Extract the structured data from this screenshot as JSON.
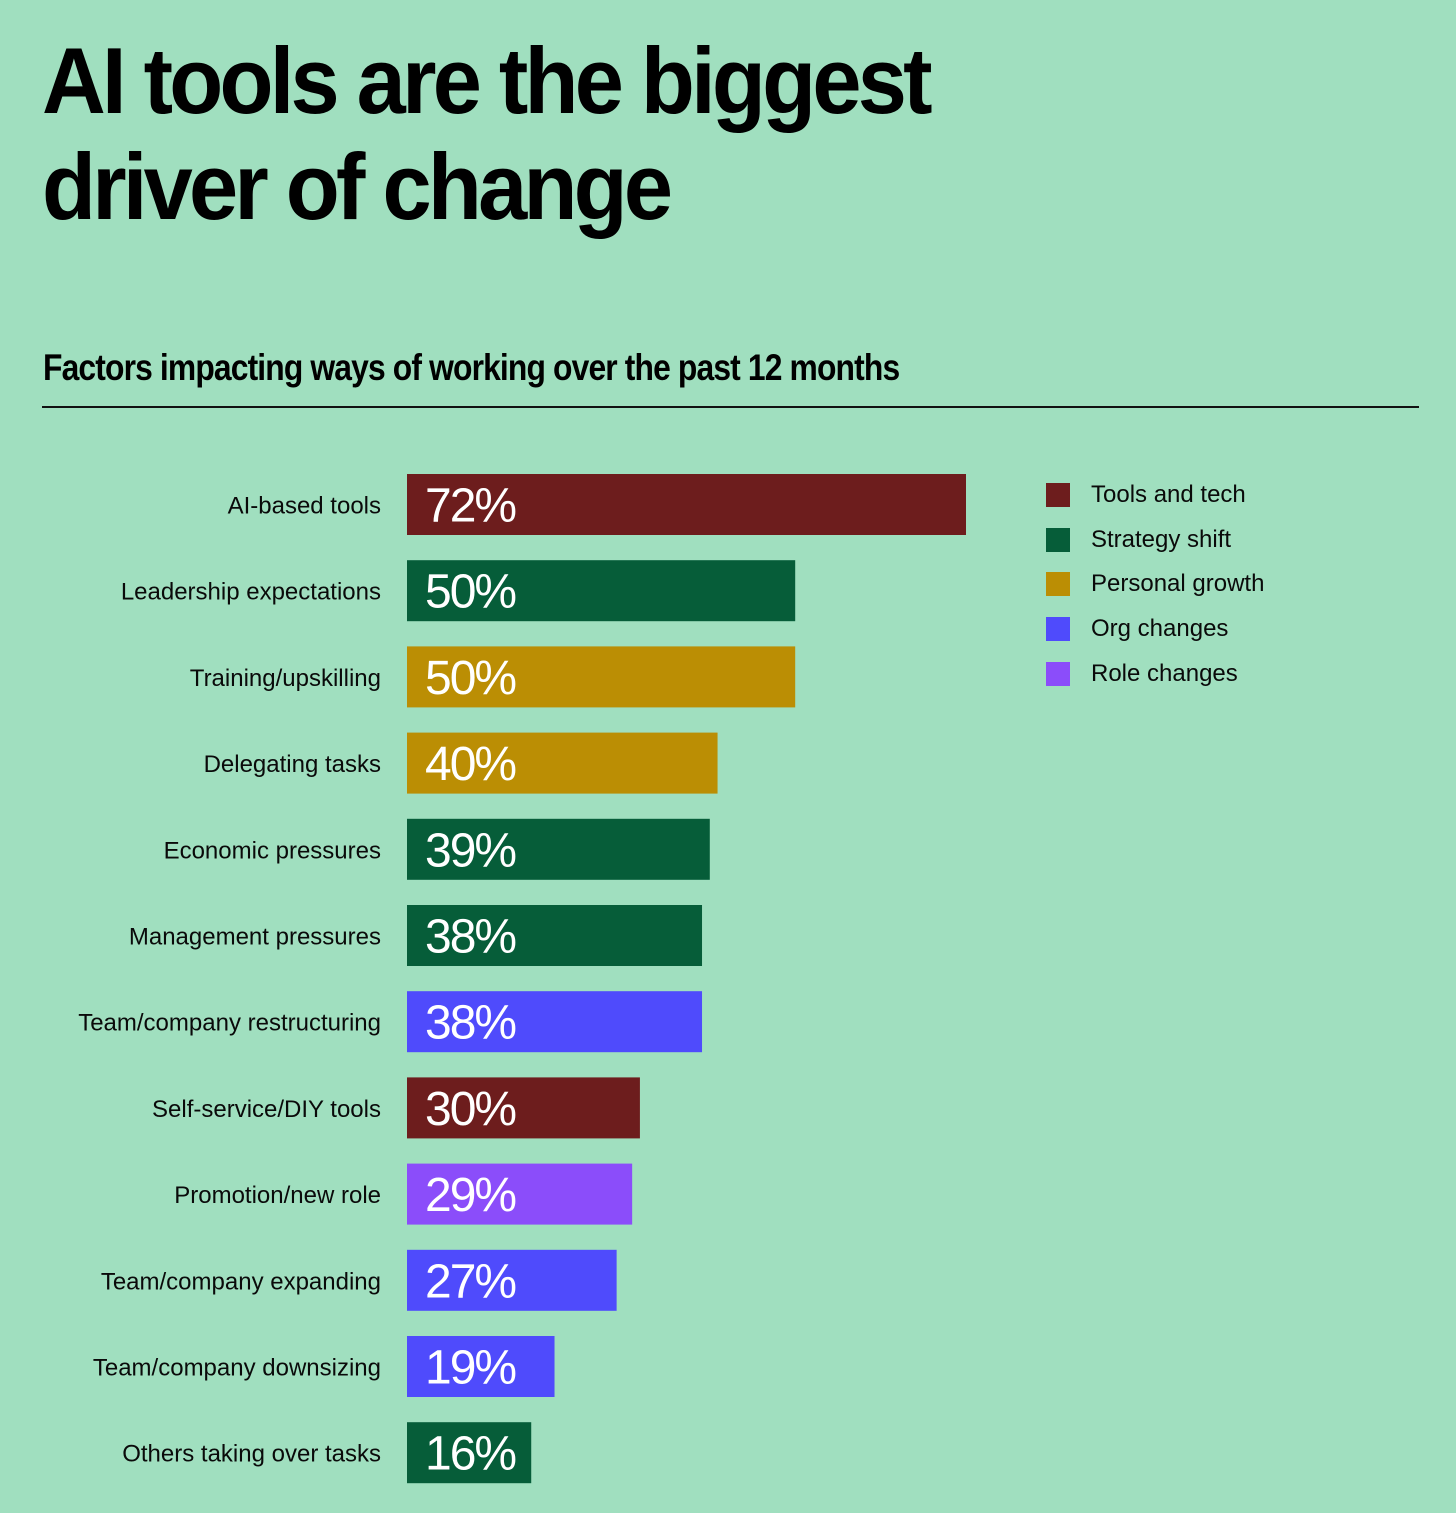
{
  "title": "AI tools are the biggest driver of change",
  "subtitle": "Factors impacting ways of working over the past 12 months",
  "colors": {
    "background": "#a0dfbf",
    "tools_and_tech": "#6d1d1d",
    "strategy_shift": "#065d39",
    "personal_growth": "#bb8e04",
    "org_changes": "#4f4bfc",
    "role_changes": "#8b4dfa"
  },
  "legend": [
    {
      "label": "Tools and tech",
      "color": "#6d1d1d"
    },
    {
      "label": "Strategy shift",
      "color": "#065d39"
    },
    {
      "label": "Personal growth",
      "color": "#bb8e04"
    },
    {
      "label": "Org changes",
      "color": "#4f4bfc"
    },
    {
      "label": "Role changes",
      "color": "#8b4dfa"
    }
  ],
  "chart_data": {
    "type": "bar",
    "orientation": "horizontal",
    "title": "AI tools are the biggest driver of change",
    "subtitle": "Factors impacting ways of working over the past 12 months",
    "xlabel": "",
    "ylabel": "",
    "unit": "%",
    "xlim": [
      0,
      72
    ],
    "grid": false,
    "legend_position": "top-right",
    "categories": [
      "AI-based tools",
      "Leadership expectations",
      "Training/upskilling",
      "Delegating tasks",
      "Economic pressures",
      "Management pressures",
      "Team/company restructuring",
      "Self-service/DIY tools",
      "Promotion/new role",
      "Team/company expanding",
      "Team/company downsizing",
      "Others taking over tasks"
    ],
    "values": [
      72,
      50,
      50,
      40,
      39,
      38,
      38,
      30,
      29,
      27,
      19,
      16
    ],
    "value_labels": [
      "72%",
      "50%",
      "50%",
      "40%",
      "39%",
      "38%",
      "38%",
      "30%",
      "29%",
      "27%",
      "19%",
      "16%"
    ],
    "groups": [
      "Tools and tech",
      "Strategy shift",
      "Personal growth",
      "Personal growth",
      "Strategy shift",
      "Strategy shift",
      "Org changes",
      "Tools and tech",
      "Role changes",
      "Org changes",
      "Org changes",
      "Strategy shift"
    ]
  }
}
